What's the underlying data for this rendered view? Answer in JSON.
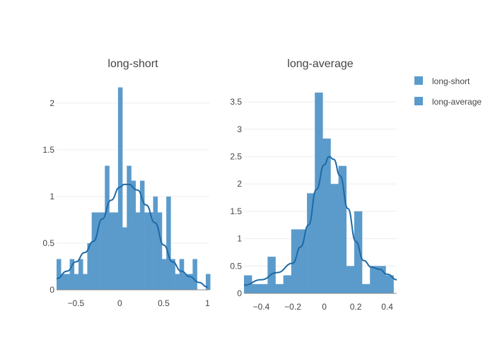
{
  "colors": {
    "bar": "#5b9bcc",
    "curve": "#1f6aa5",
    "grid": "#eeeeee",
    "axis": "#444444",
    "title": "#444444"
  },
  "legend": {
    "items": [
      {
        "label": "long-short",
        "color": "#5b9bcc"
      },
      {
        "label": "long-average",
        "color": "#5b9bcc"
      }
    ]
  },
  "chart_data": [
    {
      "type": "bar",
      "title": "long-short",
      "xlim": [
        -0.72,
        1.02
      ],
      "ylim": [
        0,
        2.22
      ],
      "bin_start": -0.72,
      "bin_width": 0.05,
      "values": [
        0.33,
        0.17,
        0.17,
        0.33,
        0.17,
        0.33,
        0.17,
        0.5,
        0.83,
        0.83,
        0.83,
        1.33,
        0.83,
        0.83,
        2.17,
        0.67,
        1.33,
        1.17,
        0.83,
        1.17,
        0.83,
        0.83,
        1.0,
        0.83,
        0.33,
        1.0,
        0.33,
        0.17,
        0.33,
        0.17,
        0.17,
        0.33,
        0.0,
        0.0,
        0.17
      ],
      "kde": {
        "x": [
          -0.72,
          -0.6,
          -0.5,
          -0.4,
          -0.3,
          -0.2,
          -0.1,
          0.0,
          0.05,
          0.1,
          0.2,
          0.3,
          0.4,
          0.5,
          0.6,
          0.7,
          0.8,
          0.9,
          1.0
        ],
        "y": [
          0.12,
          0.2,
          0.3,
          0.4,
          0.52,
          0.76,
          0.96,
          1.1,
          1.13,
          1.13,
          1.07,
          0.91,
          0.72,
          0.48,
          0.3,
          0.2,
          0.14,
          0.08,
          0.03
        ]
      },
      "xticks": [
        -0.5,
        0,
        0.5,
        1
      ],
      "xtick_labels": [
        "−0.5",
        "0",
        "0.5",
        "1"
      ],
      "yticks": [
        0,
        0.5,
        1,
        1.5,
        2
      ],
      "ytick_labels": [
        "0",
        "0.5",
        "1",
        "1.5",
        "2"
      ]
    },
    {
      "type": "bar",
      "title": "long-average",
      "xlim": [
        -0.51,
        0.46
      ],
      "ylim": [
        0,
        3.85
      ],
      "bin_start": -0.51,
      "bin_width": 0.05,
      "values": [
        0.33,
        0.17,
        0.17,
        0.67,
        0.17,
        0.33,
        1.17,
        1.17,
        1.83,
        3.67,
        2.83,
        2.0,
        2.33,
        0.5,
        1.5,
        0.17,
        0.5,
        0.5,
        0.33
      ],
      "kde": {
        "x": [
          -0.51,
          -0.4,
          -0.3,
          -0.2,
          -0.15,
          -0.1,
          -0.05,
          0.0,
          0.03,
          0.06,
          0.1,
          0.15,
          0.2,
          0.25,
          0.3,
          0.35,
          0.4,
          0.46
        ],
        "y": [
          0.15,
          0.25,
          0.38,
          0.55,
          0.85,
          1.25,
          1.9,
          2.35,
          2.5,
          2.45,
          2.15,
          1.55,
          0.95,
          0.6,
          0.48,
          0.44,
          0.35,
          0.25
        ]
      },
      "xticks": [
        -0.4,
        -0.2,
        0,
        0.2,
        0.4
      ],
      "xtick_labels": [
        "−0.4",
        "−0.2",
        "0",
        "0.2",
        "0.4"
      ],
      "yticks": [
        0,
        0.5,
        1,
        1.5,
        2,
        2.5,
        3,
        3.5
      ],
      "ytick_labels": [
        "0",
        "0.5",
        "1",
        "1.5",
        "2",
        "2.5",
        "3",
        "3.5"
      ]
    }
  ]
}
